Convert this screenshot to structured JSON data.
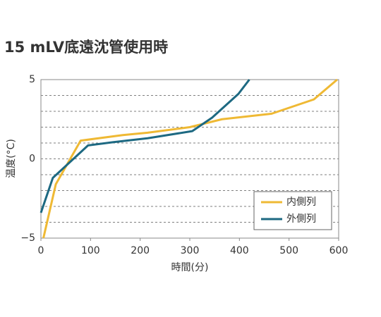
{
  "chart_data": {
    "type": "line",
    "title": "15 mLV底遠沈管使用時",
    "x_label": "時間(分)",
    "y_label": "温度(°C)",
    "xlim": [
      0,
      600
    ],
    "ylim": [
      -5,
      5
    ],
    "xticks": [
      0,
      100,
      200,
      300,
      400,
      500,
      600
    ],
    "yticks": [
      {
        "value": -5,
        "label": "−5"
      },
      0,
      5
    ],
    "y_grid": [
      -4,
      -3,
      -2,
      -1,
      0,
      1,
      2,
      3,
      4
    ],
    "legend": "lower right",
    "series": [
      {
        "name": "内側列",
        "color": "#efb934",
        "x": [
          5,
          30,
          80,
          165,
          215,
          300,
          365,
          465,
          550,
          597
        ],
        "values": [
          -5,
          -1.6,
          1.15,
          1.5,
          1.65,
          2.0,
          2.5,
          2.85,
          3.75,
          5
        ]
      },
      {
        "name": "外側列",
        "color": "#1d6982",
        "x": [
          0,
          24,
          95,
          145,
          215,
          305,
          345,
          398,
          420
        ],
        "values": [
          -3.4,
          -1.2,
          0.85,
          1.05,
          1.3,
          1.75,
          2.6,
          4.1,
          5
        ]
      }
    ]
  }
}
